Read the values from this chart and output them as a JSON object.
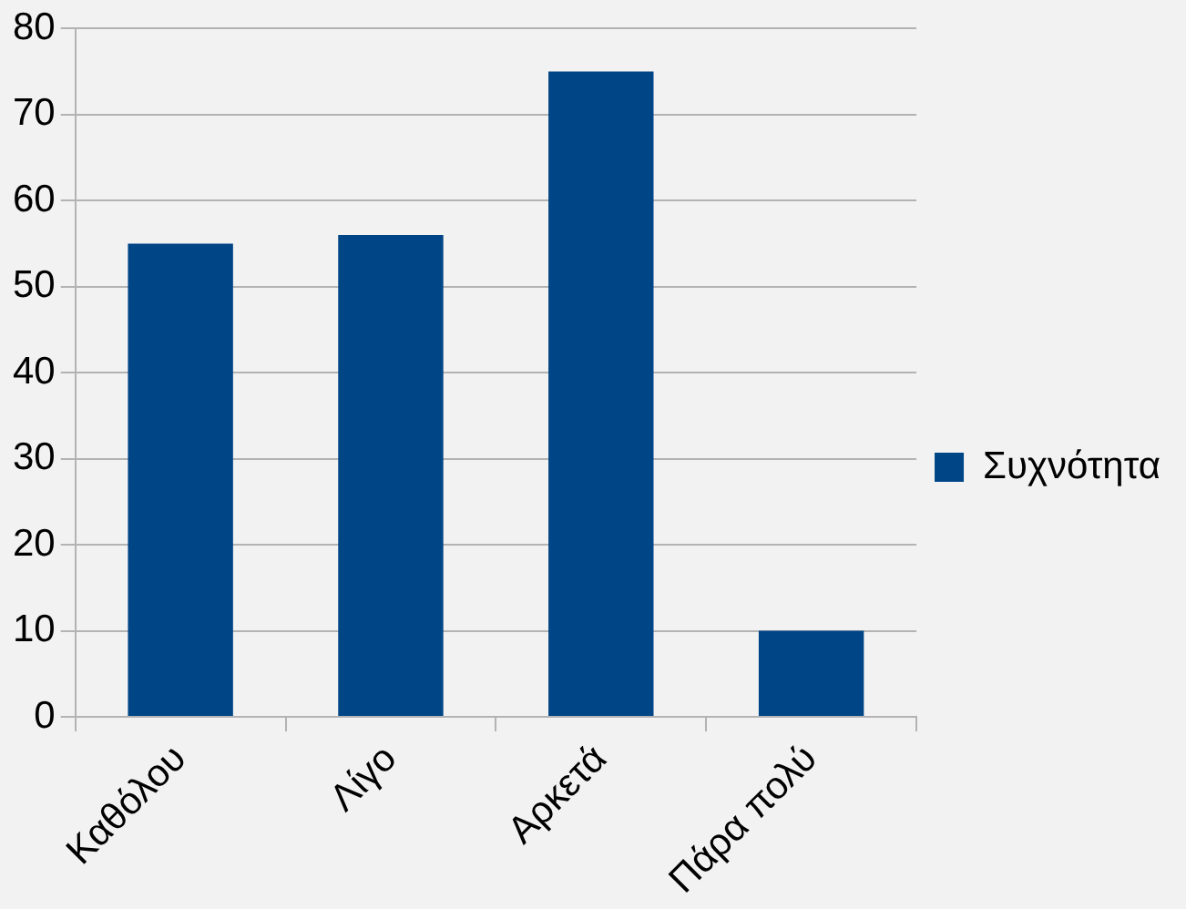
{
  "chart_data": {
    "type": "bar",
    "categories": [
      "Καθόλου",
      "Λίγο",
      "Αρκετά",
      "Πάρα πολύ"
    ],
    "series": [
      {
        "name": "Συχνότητα",
        "color": "#004586",
        "values": [
          55,
          56,
          75,
          10
        ]
      }
    ],
    "ylim": [
      0,
      80
    ],
    "yticks": [
      0,
      10,
      20,
      30,
      40,
      50,
      60,
      70,
      80
    ],
    "grid": "y",
    "legend": "right"
  }
}
